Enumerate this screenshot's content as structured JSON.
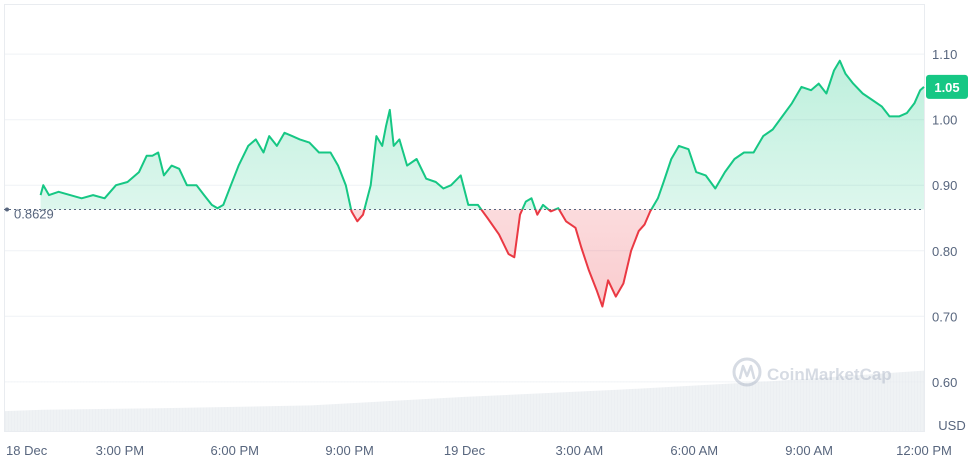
{
  "chart_data": {
    "type": "area",
    "baseline_label": "0.8629",
    "baseline_value": 0.8629,
    "current_price_label": "1.05",
    "currency_label": "USD",
    "watermark": "CoinMarketCap",
    "y_ticks": [
      "1.10",
      "1.00",
      "0.90",
      "0.80",
      "0.70",
      "0.60"
    ],
    "y_tick_values": [
      1.1,
      1.0,
      0.9,
      0.8,
      0.7,
      0.6
    ],
    "x_ticks": [
      "18 Dec",
      "3:00 PM",
      "6:00 PM",
      "9:00 PM",
      "19 Dec",
      "3:00 AM",
      "6:00 AM",
      "9:00 AM",
      "12:00 PM"
    ],
    "x_tick_hours": [
      0,
      3,
      6,
      9,
      12,
      15,
      18,
      21,
      24
    ],
    "ylim": [
      0.525,
      1.175
    ],
    "xlim": [
      0,
      24
    ],
    "colors": {
      "up": "#16c784",
      "down": "#ea3943",
      "price_tag": "#16c784"
    },
    "series": [
      {
        "values": [
          [
            0.93,
            0.885
          ],
          [
            1.0,
            0.9
          ],
          [
            1.15,
            0.885
          ],
          [
            1.4,
            0.89
          ],
          [
            1.7,
            0.885
          ],
          [
            2.0,
            0.88
          ],
          [
            2.3,
            0.885
          ],
          [
            2.6,
            0.88
          ],
          [
            2.9,
            0.9
          ],
          [
            3.2,
            0.905
          ],
          [
            3.5,
            0.92
          ],
          [
            3.7,
            0.945
          ],
          [
            3.85,
            0.945
          ],
          [
            4.0,
            0.95
          ],
          [
            4.15,
            0.915
          ],
          [
            4.35,
            0.93
          ],
          [
            4.55,
            0.925
          ],
          [
            4.75,
            0.9
          ],
          [
            5.0,
            0.9
          ],
          [
            5.2,
            0.885
          ],
          [
            5.4,
            0.87
          ],
          [
            5.55,
            0.865
          ],
          [
            5.7,
            0.87
          ],
          [
            5.9,
            0.9
          ],
          [
            6.1,
            0.93
          ],
          [
            6.35,
            0.96
          ],
          [
            6.55,
            0.97
          ],
          [
            6.75,
            0.95
          ],
          [
            6.9,
            0.975
          ],
          [
            7.1,
            0.96
          ],
          [
            7.3,
            0.98
          ],
          [
            7.5,
            0.975
          ],
          [
            7.7,
            0.97
          ],
          [
            7.95,
            0.965
          ],
          [
            8.2,
            0.95
          ],
          [
            8.5,
            0.95
          ],
          [
            8.7,
            0.93
          ],
          [
            8.9,
            0.9
          ],
          [
            9.05,
            0.86
          ],
          [
            9.2,
            0.845
          ],
          [
            9.35,
            0.855
          ],
          [
            9.55,
            0.9
          ],
          [
            9.7,
            0.975
          ],
          [
            9.85,
            0.96
          ],
          [
            9.95,
            0.99
          ],
          [
            10.05,
            1.015
          ],
          [
            10.15,
            0.96
          ],
          [
            10.3,
            0.97
          ],
          [
            10.5,
            0.93
          ],
          [
            10.75,
            0.94
          ],
          [
            11.0,
            0.91
          ],
          [
            11.25,
            0.905
          ],
          [
            11.45,
            0.895
          ],
          [
            11.65,
            0.9
          ],
          [
            11.9,
            0.915
          ],
          [
            12.1,
            0.87
          ],
          [
            12.35,
            0.87
          ],
          [
            12.6,
            0.85
          ],
          [
            12.9,
            0.825
          ],
          [
            13.15,
            0.795
          ],
          [
            13.3,
            0.79
          ],
          [
            13.45,
            0.855
          ],
          [
            13.6,
            0.875
          ],
          [
            13.75,
            0.88
          ],
          [
            13.9,
            0.855
          ],
          [
            14.05,
            0.87
          ],
          [
            14.25,
            0.86
          ],
          [
            14.45,
            0.865
          ],
          [
            14.65,
            0.845
          ],
          [
            14.9,
            0.835
          ],
          [
            15.05,
            0.805
          ],
          [
            15.25,
            0.77
          ],
          [
            15.45,
            0.74
          ],
          [
            15.6,
            0.715
          ],
          [
            15.75,
            0.755
          ],
          [
            15.95,
            0.73
          ],
          [
            16.15,
            0.75
          ],
          [
            16.35,
            0.8
          ],
          [
            16.55,
            0.83
          ],
          [
            16.7,
            0.84
          ],
          [
            16.85,
            0.86
          ],
          [
            17.05,
            0.88
          ],
          [
            17.2,
            0.905
          ],
          [
            17.4,
            0.94
          ],
          [
            17.6,
            0.96
          ],
          [
            17.85,
            0.955
          ],
          [
            18.05,
            0.92
          ],
          [
            18.3,
            0.915
          ],
          [
            18.55,
            0.895
          ],
          [
            18.8,
            0.92
          ],
          [
            19.05,
            0.94
          ],
          [
            19.3,
            0.95
          ],
          [
            19.55,
            0.95
          ],
          [
            19.8,
            0.975
          ],
          [
            20.05,
            0.985
          ],
          [
            20.3,
            1.005
          ],
          [
            20.55,
            1.025
          ],
          [
            20.8,
            1.05
          ],
          [
            21.05,
            1.045
          ],
          [
            21.25,
            1.055
          ],
          [
            21.45,
            1.04
          ],
          [
            21.65,
            1.075
          ],
          [
            21.8,
            1.09
          ],
          [
            21.95,
            1.07
          ],
          [
            22.15,
            1.055
          ],
          [
            22.4,
            1.04
          ],
          [
            22.65,
            1.03
          ],
          [
            22.9,
            1.02
          ],
          [
            23.1,
            1.005
          ],
          [
            23.35,
            1.005
          ],
          [
            23.55,
            1.01
          ],
          [
            23.75,
            1.025
          ],
          [
            23.9,
            1.045
          ],
          [
            24.0,
            1.05
          ]
        ]
      }
    ],
    "volume": {
      "note": "relative volume area at bottom",
      "values": [
        [
          0,
          0.28
        ],
        [
          1,
          0.3
        ],
        [
          4,
          0.32
        ],
        [
          8,
          0.36
        ],
        [
          12,
          0.48
        ],
        [
          16,
          0.58
        ],
        [
          20,
          0.7
        ],
        [
          24,
          0.85
        ]
      ]
    }
  }
}
